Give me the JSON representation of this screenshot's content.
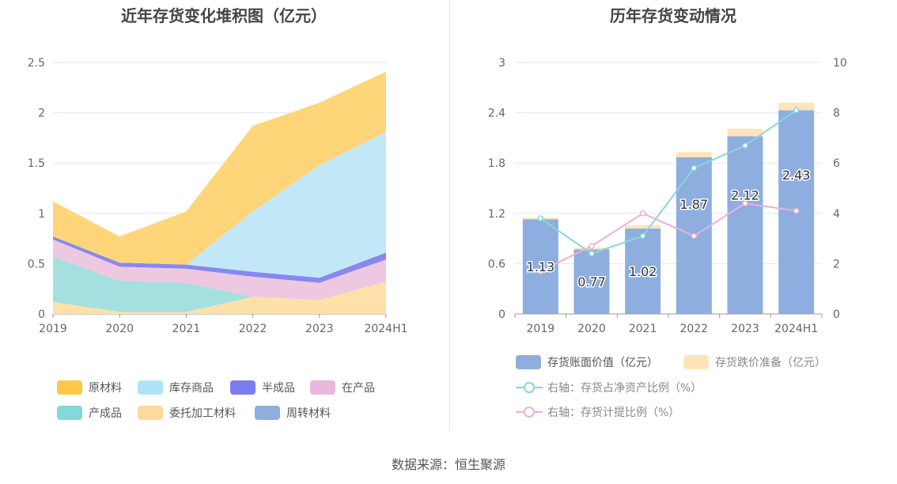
{
  "source_label": "数据来源：恒生聚源",
  "chart_data": [
    {
      "type": "area",
      "stacked": true,
      "title": "近年存货变化堆积图（亿元）",
      "categories": [
        "2019",
        "2020",
        "2021",
        "2022",
        "2023",
        "2024H1"
      ],
      "y_ticks": [
        "0",
        "0.5",
        "1",
        "1.5",
        "2",
        "2.5"
      ],
      "ylim": [
        0,
        2.5
      ],
      "grid": true,
      "legend_position": "bottom",
      "series": [
        {
          "name": "委托加工材料",
          "color": "#ffe0a8",
          "values": [
            0.12,
            0.02,
            0.02,
            0.17,
            0.14,
            0.32
          ]
        },
        {
          "name": "产成品",
          "color": "#a4e0e0",
          "values": [
            0.45,
            0.31,
            0.29,
            0.0,
            0.0,
            0.0
          ]
        },
        {
          "name": "在产品",
          "color": "#eec8e0",
          "values": [
            0.17,
            0.14,
            0.14,
            0.2,
            0.17,
            0.22
          ]
        },
        {
          "name": "半成品",
          "color": "#8888ee",
          "values": [
            0.03,
            0.04,
            0.04,
            0.05,
            0.05,
            0.07
          ]
        },
        {
          "name": "周转材料",
          "color": "#8eb0e0",
          "values": [
            0.0,
            0.0,
            0.0,
            0.0,
            0.0,
            0.0
          ]
        },
        {
          "name": "库存商品",
          "color": "#c2e8f8",
          "values": [
            0.0,
            0.0,
            0.0,
            0.6,
            1.12,
            1.2
          ]
        },
        {
          "name": "原材料",
          "color": "#fed679",
          "values": [
            0.35,
            0.26,
            0.53,
            0.85,
            0.62,
            0.6
          ]
        }
      ],
      "legend": [
        {
          "name": "原材料",
          "color": "#ffc846"
        },
        {
          "name": "库存商品",
          "color": "#aee4f8"
        },
        {
          "name": "半成品",
          "color": "#7c7cf2"
        },
        {
          "name": "在产品",
          "color": "#e8b8dc"
        },
        {
          "name": "产成品",
          "color": "#84d8d8"
        },
        {
          "name": "委托加工材料",
          "color": "#ffd89c"
        },
        {
          "name": "周转材料",
          "color": "#8eaee0"
        }
      ]
    },
    {
      "type": "bar",
      "title": "历年存货变动情况",
      "categories": [
        "2019",
        "2020",
        "2021",
        "2022",
        "2023",
        "2024H1"
      ],
      "y_ticks_left": [
        "0",
        "0.6",
        "1.2",
        "1.8",
        "2.4",
        "3"
      ],
      "ylim_left": [
        0,
        3
      ],
      "y_ticks_right": [
        "0",
        "2",
        "4",
        "6",
        "8",
        "10"
      ],
      "ylim_right": [
        0,
        10
      ],
      "grid": true,
      "legend_position": "bottom",
      "series": [
        {
          "name": "存货账面价值（亿元）",
          "kind": "bar",
          "axis": "left",
          "color": "#8eaee0",
          "values": [
            1.13,
            0.77,
            1.02,
            1.87,
            2.12,
            2.43
          ],
          "labels": [
            "1.13",
            "0.77",
            "1.02",
            "1.87",
            "2.12",
            "2.43"
          ]
        },
        {
          "name": "存货跌价准备（亿元）",
          "kind": "bar",
          "axis": "left",
          "color": "#ffe4b8",
          "values": [
            0.02,
            0.02,
            0.04,
            0.06,
            0.09,
            0.09
          ]
        },
        {
          "name": "右轴：存货占净资产比例（%）",
          "kind": "line",
          "axis": "right",
          "color": "#86d8d8",
          "values": [
            3.8,
            2.4,
            3.1,
            5.8,
            6.7,
            8.1
          ]
        },
        {
          "name": "右轴：存货计提比例（%）",
          "kind": "line",
          "axis": "right",
          "color": "#e6b2da",
          "values": [
            1.7,
            2.7,
            4.0,
            3.1,
            4.4,
            4.1
          ]
        }
      ]
    }
  ]
}
